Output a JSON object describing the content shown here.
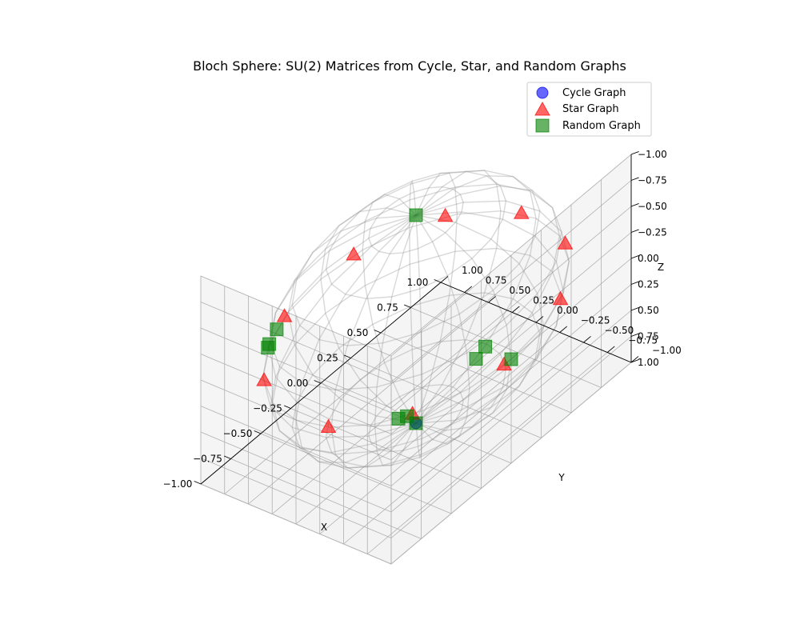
{
  "chart_data": {
    "type": "scatter3d",
    "title": "Bloch Sphere: SU(2) Matrices from Cycle, Star, and Random Graphs",
    "xlabel": "X",
    "ylabel": "Y",
    "zlabel": "Z",
    "xlim": [
      -1,
      1
    ],
    "ylim": [
      -1,
      1
    ],
    "zlim": [
      -1,
      1
    ],
    "grid": true,
    "legend_position": "top-right",
    "x_ticks": [
      "−1.00",
      "−0.75",
      "−0.50",
      "−0.25",
      "0.00",
      "0.25",
      "0.50",
      "0.75",
      "1.00"
    ],
    "y_ticks": [
      "−1.00",
      "−0.75",
      "−0.50",
      "−0.25",
      "0.00",
      "0.25",
      "0.50",
      "0.75",
      "1.00"
    ],
    "z_ticks": [
      "−1.00",
      "−0.75",
      "−0.50",
      "−0.25",
      "0.00",
      "0.25",
      "0.50",
      "0.75",
      "1.00"
    ],
    "series": [
      {
        "name": "Cycle Graph",
        "marker": "circle",
        "color": "#0000ff",
        "points": [
          [
            0,
            0,
            1
          ]
        ]
      },
      {
        "name": "Star Graph",
        "marker": "triangle",
        "color": "#ff0000",
        "points": [
          [
            -0.96,
            -0.29,
            0.0
          ],
          [
            -0.64,
            -0.77,
            0.0
          ],
          [
            -0.06,
            -1.0,
            0.0
          ],
          [
            0.53,
            -0.85,
            0.0
          ],
          [
            0.91,
            -0.42,
            0.0
          ],
          [
            0.99,
            0.14,
            0.0
          ],
          [
            0.76,
            0.65,
            0.0
          ],
          [
            0.25,
            0.97,
            0.0
          ],
          [
            -0.35,
            0.94,
            0.0
          ],
          [
            -0.83,
            0.55,
            0.0
          ]
        ]
      },
      {
        "name": "Random Graph",
        "marker": "square",
        "color": "#008000",
        "points": [
          [
            0,
            0,
            1
          ],
          [
            0,
            0,
            -1
          ],
          [
            0.5,
            0,
            0.866
          ],
          [
            0.574,
            -0.004,
            0.819
          ],
          [
            0,
            -1,
            0
          ],
          [
            -0.707,
            -0.707,
            0
          ],
          [
            -0.667,
            -0.745,
            0
          ],
          [
            -0.6,
            0.8,
            0
          ],
          [
            -0.572,
            0.82,
            0
          ],
          [
            -0.454,
            0.891,
            0
          ]
        ]
      }
    ]
  }
}
